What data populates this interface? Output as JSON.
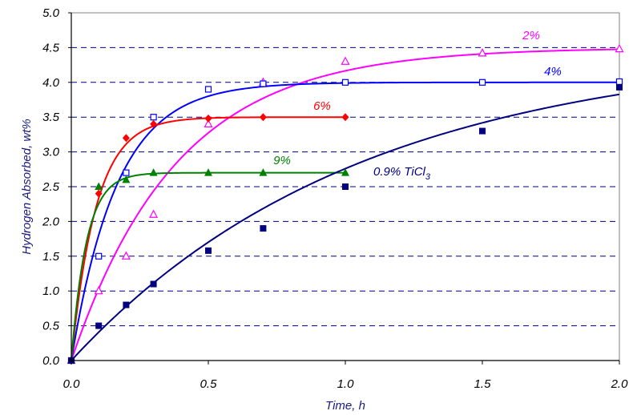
{
  "chart_data": {
    "type": "scatter",
    "title": "",
    "xlabel": "Time, h",
    "ylabel": "Hydrogen Absorbed, wt%",
    "xlim": [
      0,
      2
    ],
    "ylim": [
      0,
      5
    ],
    "xticks": [
      "0.0",
      "0.5",
      "1.0",
      "1.5",
      "2.0"
    ],
    "yticks": [
      "0.0",
      "0.5",
      "1.0",
      "1.5",
      "2.0",
      "2.5",
      "3.0",
      "3.5",
      "4.0",
      "4.5",
      "5.0"
    ],
    "grid": "horizontal dashed",
    "series": [
      {
        "name": "2%",
        "color": "#ff00ff",
        "marker": "open-triangle",
        "points": [
          [
            0,
            0
          ],
          [
            0.1,
            1.0
          ],
          [
            0.2,
            1.5
          ],
          [
            0.3,
            2.1
          ],
          [
            0.5,
            3.4
          ],
          [
            0.7,
            4.0
          ],
          [
            1.0,
            4.3
          ],
          [
            1.5,
            4.42
          ],
          [
            2.0,
            4.48
          ]
        ],
        "fit": {
          "asymptote": 4.5,
          "rate": 2.6,
          "xmax": 2.0
        }
      },
      {
        "name": "4%",
        "color": "#0000ff",
        "marker": "open-square",
        "points": [
          [
            0,
            0
          ],
          [
            0.1,
            1.5
          ],
          [
            0.2,
            2.7
          ],
          [
            0.3,
            3.5
          ],
          [
            0.5,
            3.9
          ],
          [
            0.7,
            3.98
          ],
          [
            1.0,
            4.0
          ],
          [
            1.5,
            4.0
          ],
          [
            2.0,
            4.01
          ]
        ],
        "fit": {
          "asymptote": 4.0,
          "rate": 6.0,
          "xmax": 2.0
        }
      },
      {
        "name": "6%",
        "color": "#ff0000",
        "marker": "filled-diamond",
        "points": [
          [
            0,
            0
          ],
          [
            0.1,
            2.4
          ],
          [
            0.2,
            3.2
          ],
          [
            0.3,
            3.4
          ],
          [
            0.5,
            3.48
          ],
          [
            0.7,
            3.5
          ],
          [
            1.0,
            3.5
          ]
        ],
        "fit": {
          "asymptote": 3.5,
          "rate": 11.0,
          "xmax": 1.0
        }
      },
      {
        "name": "9%",
        "color": "#008000",
        "marker": "filled-triangle",
        "points": [
          [
            0,
            0
          ],
          [
            0.1,
            2.5
          ],
          [
            0.2,
            2.6
          ],
          [
            0.3,
            2.7
          ],
          [
            0.5,
            2.7
          ],
          [
            0.7,
            2.7
          ],
          [
            1.0,
            2.7
          ]
        ],
        "fit": {
          "asymptote": 2.7,
          "rate": 18.0,
          "xmax": 1.0
        }
      },
      {
        "name": "0.9% TiCl",
        "subscript": "3",
        "color": "#000080",
        "marker": "filled-square",
        "points": [
          [
            0,
            0
          ],
          [
            0.1,
            0.5
          ],
          [
            0.2,
            0.8
          ],
          [
            0.3,
            1.1
          ],
          [
            0.5,
            1.58
          ],
          [
            0.7,
            1.9
          ],
          [
            1.0,
            2.5
          ],
          [
            1.5,
            3.3
          ],
          [
            2.0,
            3.93
          ]
        ],
        "fit": {
          "asymptote": 4.5,
          "rate": 0.95,
          "xmax": 2.0
        }
      }
    ]
  }
}
